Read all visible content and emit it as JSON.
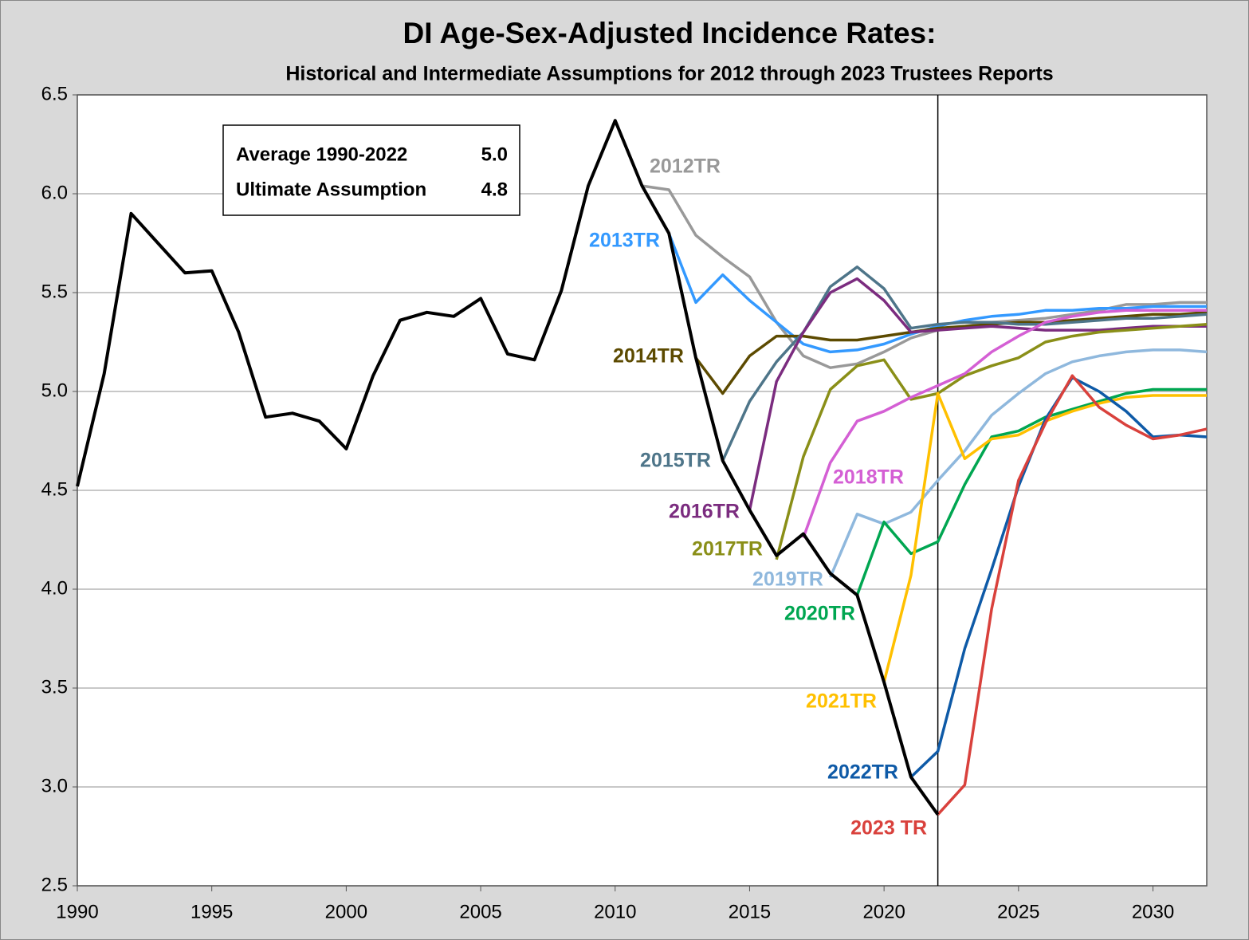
{
  "chart_data": {
    "type": "line",
    "title": "DI Age-Sex-Adjusted Incidence Rates:",
    "subtitle": "Historical and Intermediate Assumptions for 2012 through 2023 Trustees Reports",
    "annotations": [
      {
        "label": "Average 1990-2022",
        "value": "5.0"
      },
      {
        "label": "Ultimate Assumption",
        "value": "4.8"
      }
    ],
    "vline": 2022,
    "x": [
      1990,
      1991,
      1992,
      1993,
      1994,
      1995,
      1996,
      1997,
      1998,
      1999,
      2000,
      2001,
      2002,
      2003,
      2004,
      2005,
      2006,
      2007,
      2008,
      2009,
      2010,
      2011,
      2012,
      2013,
      2014,
      2015,
      2016,
      2017,
      2018,
      2019,
      2020,
      2021,
      2022,
      2023,
      2024,
      2025,
      2026,
      2027,
      2028,
      2029,
      2030,
      2031,
      2032
    ],
    "xlim": [
      1990,
      2032
    ],
    "xticks": [
      1990,
      1995,
      2000,
      2005,
      2010,
      2015,
      2020,
      2025,
      2030
    ],
    "ylim": [
      2.5,
      6.5
    ],
    "yticks": [
      2.5,
      {
        "value": 3,
        "label": "3.0"
      },
      3.5,
      {
        "value": 4,
        "label": "4.0"
      },
      4.5,
      {
        "value": 5,
        "label": "5.0"
      },
      5.5,
      {
        "value": 6,
        "label": "6.0"
      },
      6.5
    ],
    "grid": true,
    "series": [
      {
        "color": "#000000",
        "values": [
          4.52,
          5.09,
          5.9,
          5.75,
          5.6,
          5.61,
          5.3,
          4.87,
          4.89,
          4.85,
          4.71,
          5.08,
          5.36,
          5.4,
          5.38,
          5.47,
          5.19,
          5.16,
          5.51,
          6.04,
          6.37,
          6.04,
          5.8,
          5.17,
          4.65,
          4.4,
          4.17,
          4.28,
          4.08,
          3.97,
          3.53,
          3.05,
          2.86,
          null,
          null,
          null,
          null,
          null,
          null,
          null,
          null,
          null,
          null
        ]
      },
      {
        "name": "2012TR",
        "color": "#999999",
        "values": [
          null,
          null,
          null,
          null,
          null,
          null,
          null,
          null,
          null,
          null,
          null,
          null,
          null,
          null,
          null,
          null,
          null,
          null,
          null,
          null,
          null,
          6.04,
          6.02,
          5.79,
          5.68,
          5.58,
          5.35,
          5.18,
          5.12,
          5.14,
          5.2,
          5.27,
          5.31,
          5.33,
          5.35,
          5.36,
          5.37,
          5.39,
          5.41,
          5.44,
          5.44,
          5.45,
          5.45
        ]
      },
      {
        "name": "2013TR",
        "color": "#3399ff",
        "values": [
          null,
          null,
          null,
          null,
          null,
          null,
          null,
          null,
          null,
          null,
          null,
          null,
          null,
          null,
          null,
          null,
          null,
          null,
          null,
          null,
          null,
          null,
          5.8,
          5.45,
          5.59,
          5.46,
          5.35,
          5.24,
          5.2,
          5.21,
          5.24,
          5.29,
          5.33,
          5.36,
          5.38,
          5.39,
          5.41,
          5.41,
          5.42,
          5.42,
          5.43,
          5.43,
          5.43
        ]
      },
      {
        "name": "2014TR",
        "color": "#5c4a00",
        "values": [
          null,
          null,
          null,
          null,
          null,
          null,
          null,
          null,
          null,
          null,
          null,
          null,
          null,
          null,
          null,
          null,
          null,
          null,
          null,
          null,
          null,
          null,
          null,
          5.17,
          4.99,
          5.18,
          5.28,
          5.28,
          5.26,
          5.26,
          5.28,
          5.3,
          5.32,
          5.33,
          5.34,
          5.35,
          5.35,
          5.36,
          5.37,
          5.38,
          5.39,
          5.39,
          5.4
        ]
      },
      {
        "name": "2015TR",
        "color": "#4e7589",
        "values": [
          null,
          null,
          null,
          null,
          null,
          null,
          null,
          null,
          null,
          null,
          null,
          null,
          null,
          null,
          null,
          null,
          null,
          null,
          null,
          null,
          null,
          null,
          null,
          null,
          4.65,
          4.95,
          5.15,
          5.3,
          5.53,
          5.63,
          5.52,
          5.32,
          5.34,
          5.35,
          5.35,
          5.34,
          5.34,
          5.35,
          5.36,
          5.37,
          5.37,
          5.38,
          5.39
        ]
      },
      {
        "name": "2016TR",
        "color": "#7b2c7f",
        "values": [
          null,
          null,
          null,
          null,
          null,
          null,
          null,
          null,
          null,
          null,
          null,
          null,
          null,
          null,
          null,
          null,
          null,
          null,
          null,
          null,
          null,
          null,
          null,
          null,
          null,
          4.4,
          5.05,
          5.3,
          5.5,
          5.57,
          5.46,
          5.3,
          5.31,
          5.32,
          5.33,
          5.32,
          5.31,
          5.31,
          5.31,
          5.32,
          5.33,
          5.33,
          5.33
        ]
      },
      {
        "name": "2017TR",
        "color": "#8a8f18",
        "values": [
          null,
          null,
          null,
          null,
          null,
          null,
          null,
          null,
          null,
          null,
          null,
          null,
          null,
          null,
          null,
          null,
          null,
          null,
          null,
          null,
          null,
          null,
          null,
          null,
          null,
          null,
          4.15,
          4.67,
          5.01,
          5.13,
          5.16,
          4.96,
          4.99,
          5.08,
          5.13,
          5.17,
          5.25,
          5.28,
          5.3,
          5.31,
          5.32,
          5.33,
          5.34
        ]
      },
      {
        "name": "2018TR",
        "color": "#d45fd4",
        "values": [
          null,
          null,
          null,
          null,
          null,
          null,
          null,
          null,
          null,
          null,
          null,
          null,
          null,
          null,
          null,
          null,
          null,
          null,
          null,
          null,
          null,
          null,
          null,
          null,
          null,
          null,
          null,
          4.26,
          4.64,
          4.85,
          4.9,
          4.97,
          5.03,
          5.09,
          5.2,
          5.28,
          5.35,
          5.38,
          5.4,
          5.41,
          5.41,
          5.41,
          5.41
        ]
      },
      {
        "name": "2019TR",
        "color": "#8fb8dd",
        "values": [
          null,
          null,
          null,
          null,
          null,
          null,
          null,
          null,
          null,
          null,
          null,
          null,
          null,
          null,
          null,
          null,
          null,
          null,
          null,
          null,
          null,
          null,
          null,
          null,
          null,
          null,
          null,
          null,
          4.06,
          4.38,
          4.33,
          4.39,
          4.55,
          4.7,
          4.88,
          4.99,
          5.09,
          5.15,
          5.18,
          5.2,
          5.21,
          5.21,
          5.2
        ]
      },
      {
        "name": "2020TR",
        "color": "#00a651",
        "values": [
          null,
          null,
          null,
          null,
          null,
          null,
          null,
          null,
          null,
          null,
          null,
          null,
          null,
          null,
          null,
          null,
          null,
          null,
          null,
          null,
          null,
          null,
          null,
          null,
          null,
          null,
          null,
          null,
          null,
          3.97,
          4.34,
          4.18,
          4.24,
          4.53,
          4.77,
          4.8,
          4.87,
          4.91,
          4.95,
          4.99,
          5.01,
          5.01,
          5.01
        ]
      },
      {
        "name": "2021TR",
        "color": "#ffc000",
        "values": [
          null,
          null,
          null,
          null,
          null,
          null,
          null,
          null,
          null,
          null,
          null,
          null,
          null,
          null,
          null,
          null,
          null,
          null,
          null,
          null,
          null,
          null,
          null,
          null,
          null,
          null,
          null,
          null,
          null,
          null,
          3.53,
          4.07,
          4.99,
          4.66,
          4.76,
          4.78,
          4.85,
          4.9,
          4.94,
          4.97,
          4.98,
          4.98,
          4.98
        ]
      },
      {
        "name": "2022TR",
        "color": "#0e5aa7",
        "values": [
          null,
          null,
          null,
          null,
          null,
          null,
          null,
          null,
          null,
          null,
          null,
          null,
          null,
          null,
          null,
          null,
          null,
          null,
          null,
          null,
          null,
          null,
          null,
          null,
          null,
          null,
          null,
          null,
          null,
          null,
          null,
          3.05,
          3.18,
          3.7,
          4.1,
          4.52,
          4.86,
          5.07,
          5.0,
          4.9,
          4.77,
          4.78,
          4.77
        ]
      },
      {
        "name": "2023 TR",
        "color": "#d9413c",
        "values": [
          null,
          null,
          null,
          null,
          null,
          null,
          null,
          null,
          null,
          null,
          null,
          null,
          null,
          null,
          null,
          null,
          null,
          null,
          null,
          null,
          null,
          null,
          null,
          null,
          null,
          null,
          null,
          null,
          null,
          null,
          null,
          null,
          2.86,
          3.01,
          3.9,
          4.55,
          4.84,
          5.08,
          4.92,
          4.83,
          4.76,
          4.78,
          4.81
        ]
      }
    ]
  }
}
